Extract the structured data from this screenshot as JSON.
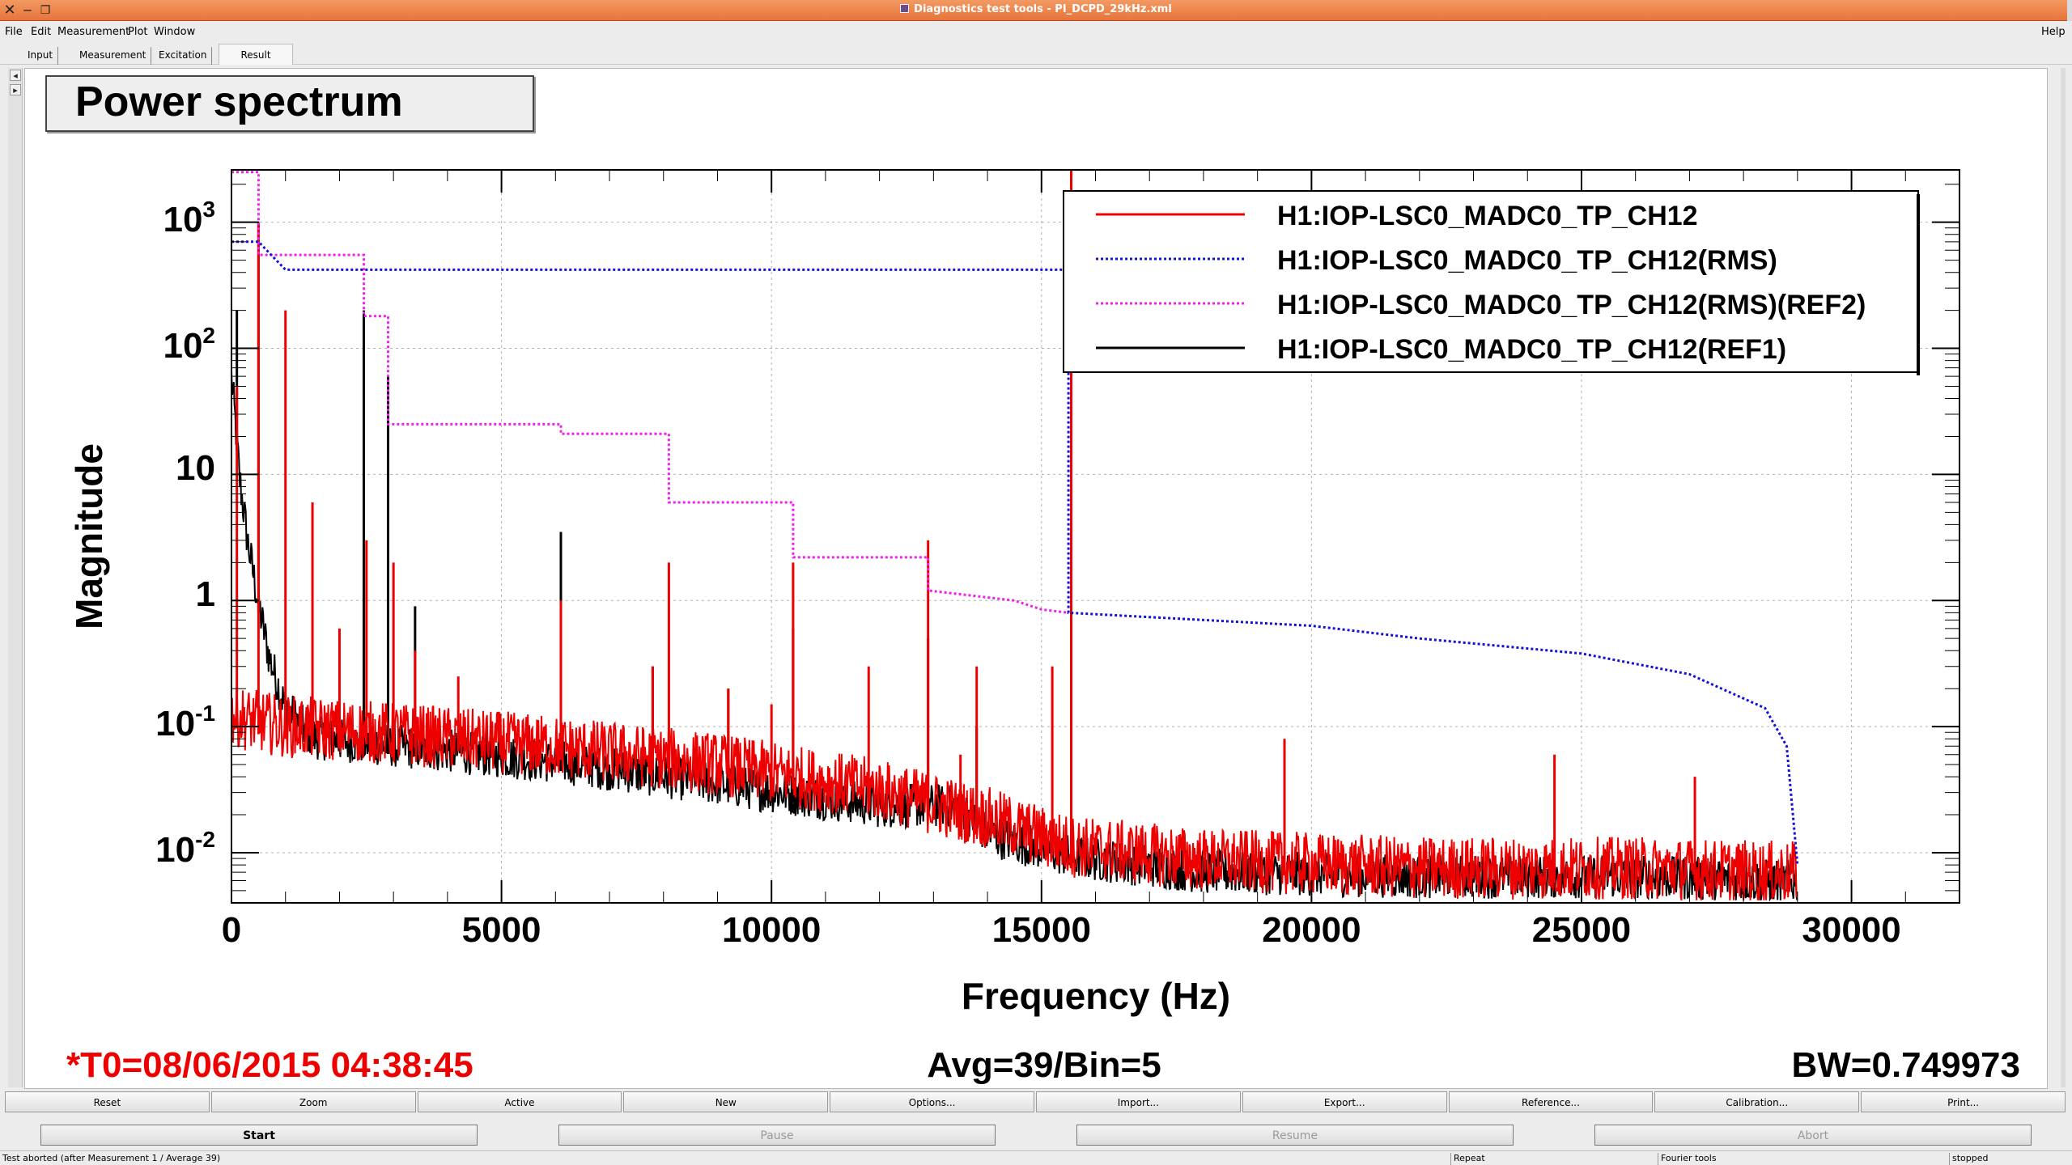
{
  "window": {
    "title": "Diagnostics test tools - PI_DCPD_29kHz.xml"
  },
  "menu": {
    "items": [
      {
        "label": "File"
      },
      {
        "label": "Edit"
      },
      {
        "label": "Measurement"
      },
      {
        "label": "Plot"
      },
      {
        "label": "Window"
      }
    ],
    "help": "Help"
  },
  "tabs": [
    {
      "label": "Input"
    },
    {
      "label": "Measurement"
    },
    {
      "label": "Excitation"
    },
    {
      "label": "Result",
      "active": true
    }
  ],
  "plot": {
    "title": "Power spectrum",
    "colors": {
      "red": "#ee0000",
      "blue": "#1212d8",
      "magenta": "#ee22ee",
      "black": "#000000"
    }
  },
  "chart_data": {
    "type": "line",
    "title": "Power spectrum",
    "xlabel": "Frequency (Hz)",
    "ylabel": "Magnitude",
    "xlim": [
      0,
      32000
    ],
    "ylim": [
      0.004,
      2600
    ],
    "y_scale": "log",
    "grid": true,
    "legend_position": "top-right",
    "x_ticks": [
      "0",
      "5000",
      "10000",
      "15000",
      "20000",
      "25000",
      "30000"
    ],
    "y_ticks": [
      {
        "base": "10",
        "exp": "3"
      },
      {
        "base": "10",
        "exp": "2"
      },
      {
        "base": "10",
        "exp": ""
      },
      {
        "base": "1",
        "exp": ""
      },
      {
        "base": "10",
        "exp": "-1"
      },
      {
        "base": "10",
        "exp": "-2"
      }
    ],
    "y_tick_values": [
      1000,
      100,
      10,
      1,
      0.1,
      0.01
    ],
    "series": [
      {
        "name": "H1:IOP-LSC0_MADC0_TP_CH12",
        "color": "#ee0000",
        "style": "solid",
        "baseline": {
          "x": [
            0,
            300,
            1000,
            3000,
            6000,
            9000,
            12000,
            14000,
            15500,
            18000,
            22000,
            26000,
            29000
          ],
          "y": [
            0.1,
            0.09,
            0.08,
            0.07,
            0.055,
            0.04,
            0.025,
            0.015,
            0.009,
            0.007,
            0.006,
            0.006,
            0.0055
          ]
        },
        "peaks": {
          "x": [
            100,
            500,
            1000,
            1500,
            2000,
            2500,
            3000,
            3400,
            4200,
            6100,
            7800,
            8100,
            9200,
            10000,
            10400,
            11800,
            12900,
            13500,
            13800,
            15200,
            15550,
            19500,
            24500,
            27100
          ],
          "y": [
            50,
            1000,
            200,
            6,
            0.6,
            3,
            2,
            0.4,
            0.25,
            1.0,
            0.3,
            2.0,
            0.2,
            0.15,
            2.0,
            0.3,
            3.0,
            0.06,
            0.3,
            0.3,
            2600,
            0.08,
            0.06,
            0.04
          ]
        }
      },
      {
        "name": "H1:IOP-LSC0_MADC0_TP_CH12(RMS)",
        "color": "#1212d8",
        "style": "dotted",
        "x": [
          0,
          500,
          500,
          1000,
          1000,
          15500,
          15500,
          20000,
          22000,
          25000,
          27000,
          28400,
          28800,
          29000
        ],
        "y": [
          700,
          700,
          700,
          420,
          420,
          420,
          0.8,
          0.63,
          0.5,
          0.38,
          0.26,
          0.14,
          0.07,
          0.008
        ]
      },
      {
        "name": "H1:IOP-LSC0_MADC0_TP_CH12(RMS)(REF2)",
        "color": "#ee22ee",
        "style": "dotted",
        "x": [
          0,
          500,
          500,
          2450,
          2450,
          2900,
          2900,
          6100,
          6100,
          8100,
          8100,
          10400,
          10400,
          12900,
          12900,
          14500,
          15000,
          15500
        ],
        "y": [
          2500,
          2500,
          550,
          550,
          180,
          180,
          25,
          25,
          21,
          21,
          6,
          6,
          2.2,
          2.2,
          1.2,
          1.0,
          0.85,
          0.8
        ]
      },
      {
        "name": "H1:IOP-LSC0_MADC0_TP_CH12(REF1)",
        "color": "#000000",
        "style": "solid",
        "baseline": {
          "x": [
            0,
            80,
            150,
            300,
            500,
            700,
            1000,
            1500,
            3000,
            6000,
            9000,
            12000,
            13500,
            14000,
            15500,
            18000,
            22000,
            26000,
            29000
          ],
          "y": [
            50,
            20,
            8,
            2.5,
            0.8,
            0.3,
            0.12,
            0.07,
            0.06,
            0.045,
            0.03,
            0.02,
            0.02,
            0.012,
            0.008,
            0.006,
            0.0055,
            0.0055,
            0.005
          ]
        },
        "peaks": {
          "x": [
            100,
            500,
            2450,
            2900,
            3400,
            6100,
            7800,
            9200,
            10400,
            12900,
            13800
          ],
          "y": [
            200,
            1000,
            200,
            60,
            0.9,
            3.5,
            0.3,
            0.2,
            0.6,
            0.5,
            0.1
          ]
        }
      }
    ]
  },
  "footer": {
    "t0": "*T0=08/06/2015 04:38:45",
    "avg": "Avg=39/Bin=5",
    "bw": "BW=0.749973"
  },
  "buttons_row1": [
    {
      "label": "Reset"
    },
    {
      "label": "Zoom"
    },
    {
      "label": "Active"
    },
    {
      "label": "New"
    },
    {
      "label": "Options..."
    },
    {
      "label": "Import..."
    },
    {
      "label": "Export..."
    },
    {
      "label": "Reference..."
    },
    {
      "label": "Calibration..."
    },
    {
      "label": "Print..."
    }
  ],
  "buttons_row2": [
    {
      "label": "Start",
      "enabled": true
    },
    {
      "label": "Pause",
      "enabled": false
    },
    {
      "label": "Resume",
      "enabled": false
    },
    {
      "label": "Abort",
      "enabled": false
    }
  ],
  "status": {
    "message": "Test aborted (after Measurement 1 / Average 39)",
    "repeat": "Repeat",
    "tool": "Fourier tools",
    "state": "stopped"
  }
}
